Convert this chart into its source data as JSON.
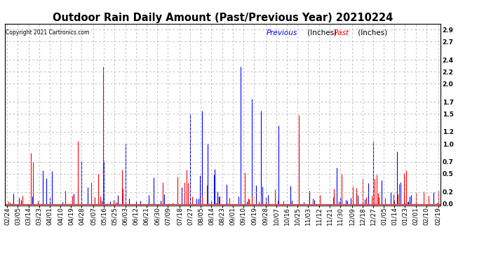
{
  "title": "Outdoor Rain Daily Amount (Past/Previous Year) 20210224",
  "copyright": "Copyright 2021 Cartronics.com",
  "legend_previous": "Previous",
  "legend_past": "Past",
  "legend_units": "(Inches)",
  "color_previous": "blue",
  "color_past": "red",
  "color_dark": "black",
  "ylim_min": -0.02,
  "ylim_max": 3.0,
  "yticks": [
    0.0,
    0.2,
    0.5,
    0.7,
    1.0,
    1.2,
    1.5,
    1.7,
    2.0,
    2.2,
    2.4,
    2.7,
    2.9
  ],
  "background_color": "white",
  "grid_color": "#aaaaaa",
  "title_fontsize": 10.5,
  "tick_fontsize": 6.5,
  "n_points": 366,
  "x_tick_labels": [
    "02/24",
    "03/05",
    "03/14",
    "03/23",
    "04/01",
    "04/10",
    "04/19",
    "04/28",
    "05/07",
    "05/16",
    "05/25",
    "06/03",
    "06/12",
    "06/21",
    "06/30",
    "07/09",
    "07/18",
    "07/27",
    "08/05",
    "08/14",
    "08/23",
    "09/01",
    "09/10",
    "09/19",
    "09/28",
    "10/07",
    "10/16",
    "10/25",
    "11/03",
    "11/12",
    "11/21",
    "11/30",
    "12/09",
    "12/18",
    "12/27",
    "01/05",
    "01/14",
    "01/23",
    "02/01",
    "02/10",
    "02/19"
  ]
}
